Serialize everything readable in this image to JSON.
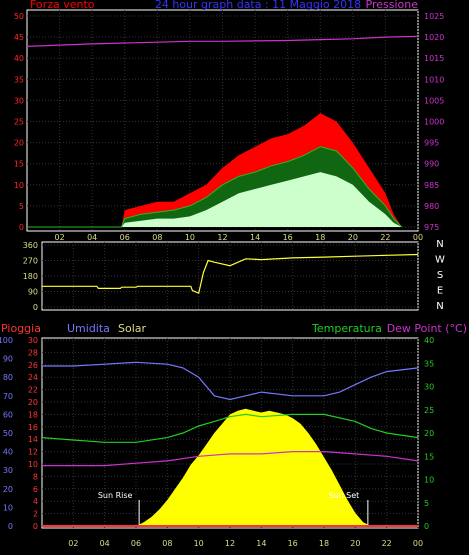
{
  "colors": {
    "wind": "#ff0000",
    "wind_avg": "#22bb22",
    "wind_low": "#ccffcc",
    "pressure": "#cc33cc",
    "direction": "#ffff33",
    "humidity": "#7777ff",
    "temperature": "#22cc22",
    "dewpoint": "#cc33cc",
    "solar": "#ffff00",
    "rain": "#ff3333",
    "frame": "#ffffff"
  },
  "chart_data": [
    {
      "type": "area",
      "title": "24 hour graph data : 11 Maggio 2018",
      "left_label": "Forza vento",
      "right_label": "Pressione",
      "x_ticks": [
        "02",
        "04",
        "06",
        "08",
        "10",
        "12",
        "14",
        "16",
        "18",
        "20",
        "22",
        "00"
      ],
      "y_left": {
        "range": [
          0,
          50
        ],
        "ticks": [
          0,
          5,
          10,
          15,
          20,
          25,
          30,
          35,
          40,
          45,
          50
        ]
      },
      "y_right": {
        "range": [
          975,
          1025
        ],
        "ticks": [
          975,
          980,
          985,
          990,
          995,
          1000,
          1005,
          1010,
          1015,
          1020,
          1025
        ]
      },
      "series": [
        {
          "key": "pressure",
          "axis": "right",
          "x": [
            0,
            2,
            4,
            6,
            8,
            10,
            12,
            14,
            16,
            18,
            20,
            22,
            24
          ],
          "y": [
            1017.8,
            1018.1,
            1018.4,
            1018.6,
            1018.8,
            1019.0,
            1019.0,
            1019.1,
            1019.2,
            1019.4,
            1019.6,
            1020.0,
            1020.2
          ]
        },
        {
          "key": "wind",
          "axis": "left",
          "x": [
            0,
            5.8,
            6.0,
            7,
            8,
            9,
            10,
            11,
            12,
            13,
            14,
            15,
            16,
            17,
            18,
            19,
            20,
            21,
            22,
            22.5,
            23
          ],
          "y": [
            0,
            0,
            4,
            5,
            6,
            6,
            8,
            10,
            14,
            17,
            19,
            21,
            22,
            24,
            27,
            25,
            20,
            14,
            8,
            3,
            0
          ]
        },
        {
          "key": "wind_avg",
          "axis": "left",
          "x": [
            0,
            5.8,
            6.0,
            7,
            8,
            9,
            10,
            11,
            12,
            13,
            14,
            15,
            16,
            17,
            18,
            19,
            20,
            21,
            22,
            22.5,
            23
          ],
          "y": [
            0,
            0,
            2,
            3,
            3.5,
            4,
            5,
            7,
            10,
            12,
            13,
            14.5,
            15.5,
            17,
            19,
            18,
            14,
            9,
            5,
            2,
            0
          ]
        },
        {
          "key": "wind_low",
          "axis": "left",
          "x": [
            0,
            5.8,
            6.0,
            7,
            8,
            9,
            10,
            11,
            12,
            13,
            14,
            15,
            16,
            17,
            18,
            19,
            20,
            21,
            22,
            22.5,
            23
          ],
          "y": [
            0,
            0,
            1,
            1.5,
            2,
            2,
            2.5,
            4,
            6,
            8,
            9,
            10,
            11,
            12,
            13,
            12,
            10,
            6,
            3,
            1,
            0
          ]
        }
      ]
    },
    {
      "type": "line",
      "x_ticks": [
        "02",
        "04",
        "06",
        "08",
        "10",
        "12",
        "14",
        "16",
        "18",
        "20",
        "22",
        "00"
      ],
      "y_left": {
        "range": [
          0,
          360
        ],
        "ticks": [
          0,
          90,
          180,
          270,
          360
        ]
      },
      "compass_labels": [
        "N",
        "W",
        "S",
        "E",
        "N"
      ],
      "series": [
        {
          "key": "direction",
          "x": [
            0,
            3.5,
            3.6,
            5.0,
            5.1,
            6.0,
            6.1,
            9.5,
            9.6,
            10,
            10.3,
            10.6,
            11,
            12,
            13,
            14,
            16,
            18,
            20,
            22,
            24
          ],
          "y": [
            120,
            120,
            108,
            108,
            115,
            115,
            120,
            120,
            95,
            80,
            200,
            270,
            260,
            240,
            280,
            275,
            285,
            290,
            295,
            300,
            305
          ]
        }
      ]
    },
    {
      "type": "line",
      "labels": [
        "Pioggia",
        "Umidita",
        "Solar",
        "Temperatura",
        "Dew Point (°C)"
      ],
      "annotations": [
        "Sun Rise",
        "Sun Set"
      ],
      "annotation_x": [
        6.2,
        20.8
      ],
      "x_ticks": [
        "02",
        "04",
        "06",
        "08",
        "10",
        "12",
        "14",
        "16",
        "18",
        "20",
        "22",
        "00"
      ],
      "y_humidity": {
        "range": [
          0,
          100
        ],
        "ticks": [
          0,
          10,
          20,
          30,
          40,
          50,
          60,
          70,
          80,
          90,
          100
        ]
      },
      "y_rain": {
        "range": [
          0,
          30
        ],
        "ticks": [
          0,
          2,
          4,
          6,
          8,
          10,
          12,
          14,
          16,
          18,
          20,
          22,
          24,
          26,
          28,
          30
        ]
      },
      "y_temp": {
        "range": [
          0,
          40
        ],
        "ticks": [
          0,
          5,
          10,
          15,
          20,
          25,
          30,
          35,
          40
        ]
      },
      "series": [
        {
          "key": "humidity",
          "scale": "humidity",
          "x": [
            0,
            2,
            4,
            6,
            8,
            9,
            10,
            10.5,
            11,
            12,
            13,
            14,
            16,
            18,
            19,
            20,
            21,
            22,
            24
          ],
          "y": [
            86,
            86,
            87,
            88,
            87,
            85,
            80,
            75,
            70,
            68,
            70,
            72,
            70,
            70,
            72,
            76,
            80,
            83,
            85
          ]
        },
        {
          "key": "temperature",
          "scale": "temp",
          "x": [
            0,
            2,
            4,
            6,
            8,
            9,
            10,
            11,
            12,
            13,
            14,
            16,
            18,
            20,
            21,
            22,
            24
          ],
          "y": [
            19,
            18.5,
            18,
            18,
            19,
            20,
            21.5,
            22.5,
            23.5,
            24,
            23.5,
            24,
            24,
            22.5,
            21,
            20,
            19
          ]
        },
        {
          "key": "dewpoint",
          "scale": "temp",
          "x": [
            0,
            2,
            4,
            6,
            8,
            10,
            12,
            14,
            16,
            18,
            20,
            22,
            24
          ],
          "y": [
            13,
            13,
            13,
            13.5,
            14,
            15,
            15.5,
            15.5,
            16,
            16,
            15.5,
            15,
            14
          ]
        },
        {
          "key": "solar",
          "scale": "solar_pct",
          "x": [
            0,
            6,
            6.5,
            7,
            7.5,
            8,
            8.5,
            9,
            9.5,
            10,
            10.5,
            11,
            11.5,
            12,
            12.5,
            13,
            13.5,
            14,
            14.5,
            15,
            15.5,
            16,
            16.5,
            17,
            17.5,
            18,
            18.5,
            19,
            19.5,
            20,
            20.5,
            21,
            24
          ],
          "y": [
            0,
            0,
            2,
            5,
            9,
            14,
            20,
            26,
            33,
            38,
            44,
            50,
            55,
            60,
            62,
            63,
            62,
            61,
            62,
            61,
            60,
            58,
            55,
            50,
            44,
            37,
            30,
            22,
            14,
            7,
            2,
            0,
            0
          ]
        },
        {
          "key": "rain",
          "scale": "rain",
          "x": [
            0,
            24
          ],
          "y": [
            0,
            0
          ]
        }
      ]
    }
  ]
}
